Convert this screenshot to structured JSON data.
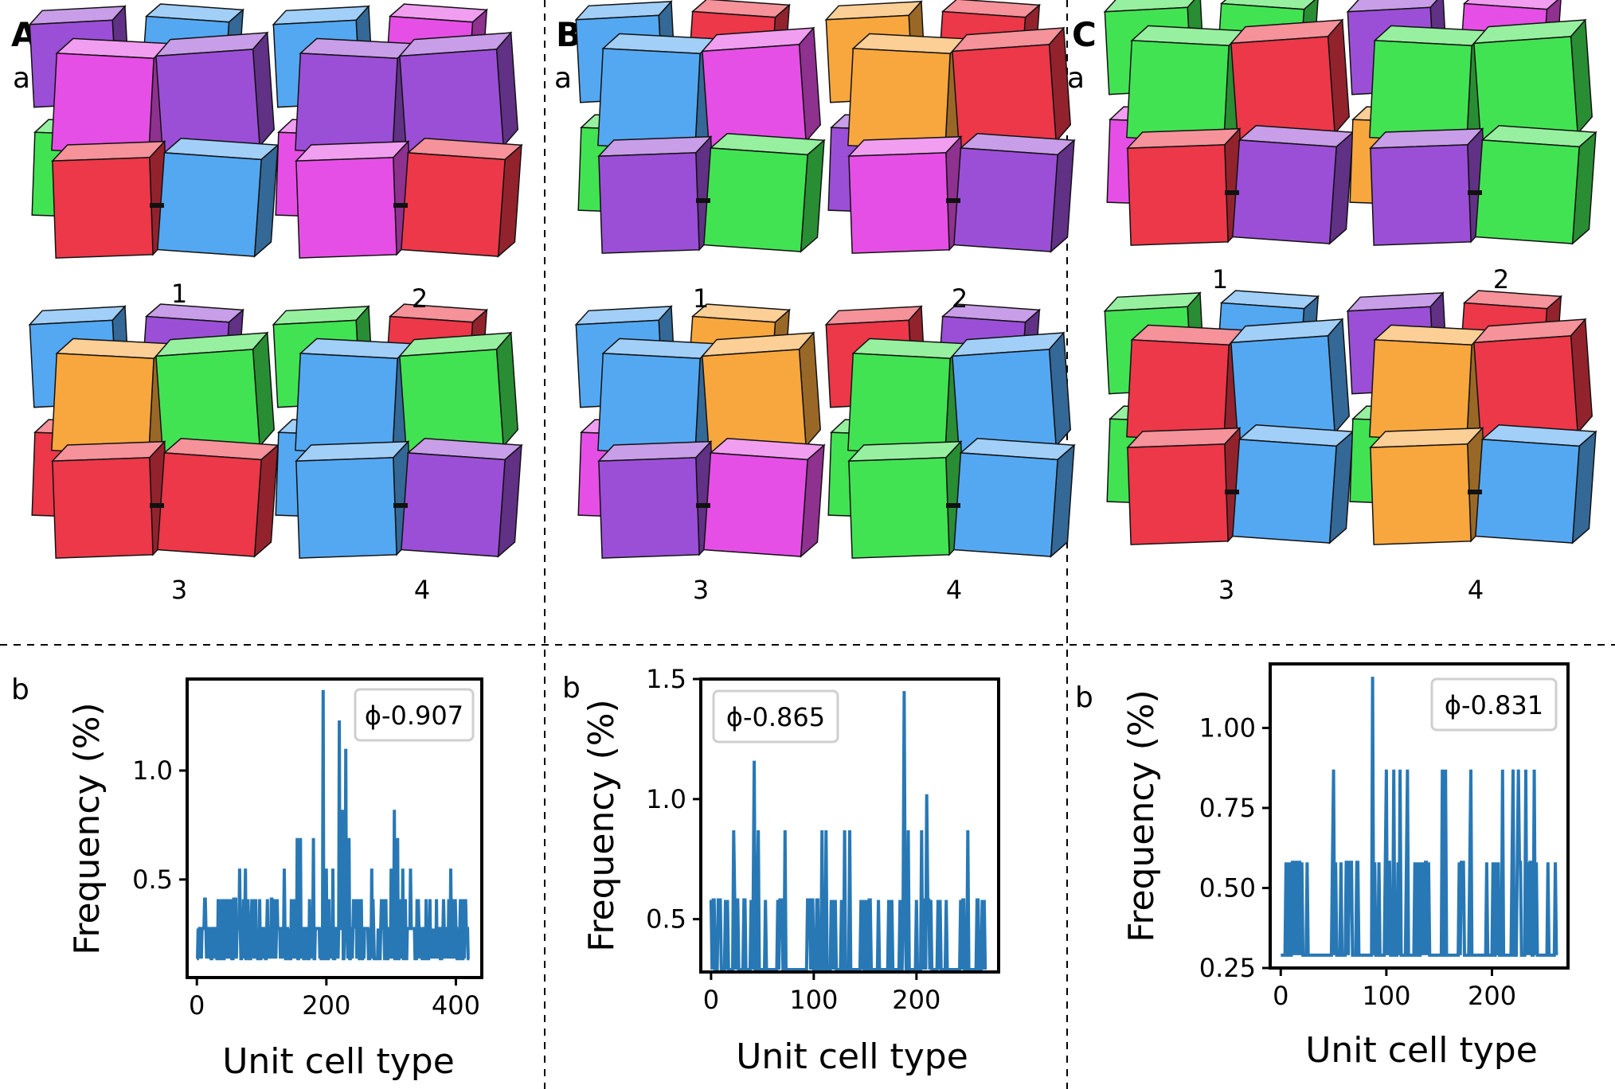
{
  "panels": [
    {
      "letter": "A",
      "sub_a": "a",
      "sub_b": "b",
      "cell_labels": [
        "1",
        "2",
        "3",
        "4"
      ],
      "cells": [
        [
          "#9b4fd6",
          "#54a8f2",
          "#42e353",
          "#e64fe6",
          "#e64fe6",
          "#9b4fd6",
          "#ec3848",
          "#54a8f2"
        ],
        [
          "#54a8f2",
          "#e64fe6",
          "#e64fe6",
          "#ec3848",
          "#9b4fd6",
          "#9b4fd6",
          "#e64fe6",
          "#ec3848"
        ],
        [
          "#54a8f2",
          "#9b4fd6",
          "#ec3848",
          "#ec3848",
          "#f8a73e",
          "#42e353",
          "#ec3848",
          "#ec3848"
        ],
        [
          "#42e353",
          "#ec3848",
          "#54a8f2",
          "#9b4fd6",
          "#54a8f2",
          "#42e353",
          "#54a8f2",
          "#9b4fd6"
        ]
      ]
    },
    {
      "letter": "B",
      "sub_a": "a",
      "sub_b": "b",
      "cell_labels": [
        "1",
        "2",
        "3",
        "4"
      ],
      "cells": [
        [
          "#54a8f2",
          "#ec3848",
          "#42e353",
          "#42e353",
          "#54a8f2",
          "#e64fe6",
          "#9b4fd6",
          "#42e353"
        ],
        [
          "#f8a73e",
          "#ec3848",
          "#9b4fd6",
          "#9b4fd6",
          "#f8a73e",
          "#ec3848",
          "#e64fe6",
          "#9b4fd6"
        ],
        [
          "#54a8f2",
          "#f8a73e",
          "#e64fe6",
          "#9b4fd6",
          "#54a8f2",
          "#f8a73e",
          "#9b4fd6",
          "#e64fe6"
        ],
        [
          "#ec3848",
          "#9b4fd6",
          "#42e353",
          "#9b4fd6",
          "#42e353",
          "#54a8f2",
          "#42e353",
          "#54a8f2"
        ]
      ]
    },
    {
      "letter": "C",
      "sub_a": "a",
      "sub_b": "b",
      "cell_labels": [
        "1",
        "2",
        "3",
        "4"
      ],
      "cells": [
        [
          "#42e353",
          "#42e353",
          "#e64fe6",
          "#9b4fd6",
          "#42e353",
          "#ec3848",
          "#ec3848",
          "#9b4fd6"
        ],
        [
          "#9b4fd6",
          "#e64fe6",
          "#f8a73e",
          "#54a8f2",
          "#42e353",
          "#42e353",
          "#9b4fd6",
          "#42e353"
        ],
        [
          "#42e353",
          "#54a8f2",
          "#42e353",
          "#f8a73e",
          "#ec3848",
          "#54a8f2",
          "#ec3848",
          "#54a8f2"
        ],
        [
          "#9b4fd6",
          "#ec3848",
          "#42e353",
          "#54a8f2",
          "#f8a73e",
          "#ec3848",
          "#f8a73e",
          "#54a8f2"
        ]
      ]
    }
  ],
  "chart_data": [
    {
      "type": "line",
      "panel": "A",
      "xlabel": "Unit cell type",
      "ylabel": "Frequency (%)",
      "legend": "ϕ-0.907",
      "legend_position": "top-right",
      "xlim": [
        -15,
        440
      ],
      "ylim": [
        0.05,
        1.42
      ],
      "xticks": [
        0,
        200,
        400
      ],
      "xtick_labels": [
        "0",
        "200",
        "400"
      ],
      "yticks": [
        0.5,
        1.0
      ],
      "ytick_labels": [
        "0.5",
        "1.0"
      ],
      "color": "#2878b5",
      "n_points": 422,
      "base_value": 0.137,
      "levels": [
        0.275,
        0.41,
        0.55,
        0.69,
        0.82,
        1.1,
        1.23,
        1.37
      ],
      "peaks": [
        [
          33,
          0.41
        ],
        [
          40,
          0.41
        ],
        [
          66,
          0.55
        ],
        [
          75,
          0.55
        ],
        [
          115,
          0.41
        ],
        [
          135,
          0.55
        ],
        [
          155,
          0.69
        ],
        [
          160,
          0.69
        ],
        [
          180,
          0.69
        ],
        [
          195,
          1.37
        ],
        [
          200,
          0.55
        ],
        [
          210,
          0.55
        ],
        [
          220,
          1.23
        ],
        [
          225,
          0.82
        ],
        [
          230,
          1.1
        ],
        [
          235,
          0.69
        ],
        [
          250,
          0.41
        ],
        [
          270,
          0.55
        ],
        [
          285,
          0.41
        ],
        [
          300,
          0.55
        ],
        [
          305,
          0.82
        ],
        [
          310,
          0.69
        ],
        [
          318,
          0.55
        ],
        [
          330,
          0.55
        ],
        [
          340,
          0.41
        ],
        [
          360,
          0.41
        ],
        [
          370,
          0.41
        ],
        [
          392,
          0.55
        ],
        [
          412,
          0.41
        ]
      ]
    },
    {
      "type": "line",
      "panel": "B",
      "xlabel": "Unit cell type",
      "ylabel": "Frequency (%)",
      "legend": "ϕ-0.865",
      "legend_position": "top-left",
      "xlim": [
        -10,
        280
      ],
      "ylim": [
        0.28,
        1.5
      ],
      "xticks": [
        0,
        100,
        200
      ],
      "xtick_labels": [
        "0",
        "100",
        "200"
      ],
      "yticks": [
        0.5,
        1.0,
        1.5
      ],
      "ytick_labels": [
        "0.5",
        "1.0",
        "1.5"
      ],
      "color": "#2878b5",
      "n_points": 268,
      "base_value": 0.29,
      "levels": [
        0.58
      ],
      "peaks": [
        [
          22,
          0.87
        ],
        [
          42,
          1.16
        ],
        [
          46,
          0.87
        ],
        [
          72,
          0.87
        ],
        [
          108,
          0.87
        ],
        [
          112,
          0.87
        ],
        [
          130,
          0.87
        ],
        [
          135,
          0.87
        ],
        [
          188,
          1.45
        ],
        [
          192,
          0.87
        ],
        [
          205,
          0.87
        ],
        [
          210,
          1.02
        ],
        [
          250,
          0.87
        ]
      ]
    },
    {
      "type": "line",
      "panel": "C",
      "xlabel": "Unit cell type",
      "ylabel": "Frequency (%)",
      "legend": "ϕ-0.831",
      "legend_position": "top-right",
      "xlim": [
        -10,
        272
      ],
      "ylim": [
        0.25,
        1.2
      ],
      "xticks": [
        0,
        100,
        200
      ],
      "xtick_labels": [
        "0",
        "100",
        "200"
      ],
      "yticks": [
        0.25,
        0.5,
        0.75,
        1.0
      ],
      "ytick_labels": [
        "0.25",
        "0.50",
        "0.75",
        "1.00"
      ],
      "color": "#2878b5",
      "n_points": 262,
      "base_value": 0.29,
      "levels": [
        0.58
      ],
      "peaks": [
        [
          50,
          0.87
        ],
        [
          87,
          1.16
        ],
        [
          100,
          0.87
        ],
        [
          107,
          0.87
        ],
        [
          113,
          0.87
        ],
        [
          120,
          0.87
        ],
        [
          153,
          0.87
        ],
        [
          156,
          0.87
        ],
        [
          180,
          0.87
        ],
        [
          210,
          0.87
        ],
        [
          220,
          0.87
        ],
        [
          225,
          0.87
        ],
        [
          232,
          0.87
        ],
        [
          240,
          0.87
        ]
      ]
    }
  ]
}
